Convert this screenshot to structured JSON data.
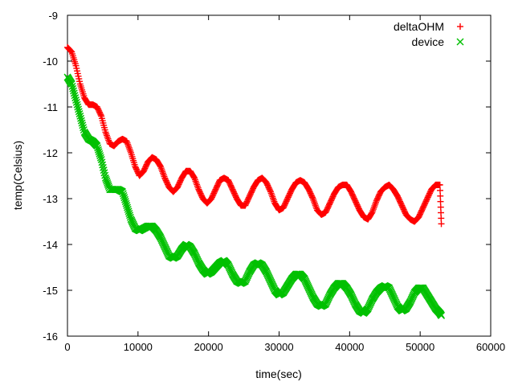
{
  "chart_data": {
    "type": "scatter",
    "title": "",
    "xlabel": "time(sec)",
    "ylabel": "temp(Celsius)",
    "xlim": [
      0,
      60000
    ],
    "ylim": [
      -16,
      -9
    ],
    "xticks": [
      0,
      10000,
      20000,
      30000,
      40000,
      50000,
      60000
    ],
    "yticks": [
      -16,
      -15,
      -14,
      -13,
      -12,
      -11,
      -10,
      -9
    ],
    "grid": false,
    "legend_position": "top-right",
    "series": [
      {
        "name": "deltaOHM",
        "marker": "plus",
        "color": "#ff0000",
        "points": [
          [
            0,
            -9.7
          ],
          [
            600,
            -9.8
          ],
          [
            1200,
            -10.1
          ],
          [
            1800,
            -10.5
          ],
          [
            2400,
            -10.8
          ],
          [
            3000,
            -10.95
          ],
          [
            3600,
            -10.95
          ],
          [
            4200,
            -11.0
          ],
          [
            4800,
            -11.2
          ],
          [
            5400,
            -11.55
          ],
          [
            6000,
            -11.8
          ],
          [
            6600,
            -11.85
          ],
          [
            7200,
            -11.75
          ],
          [
            7800,
            -11.7
          ],
          [
            8400,
            -11.75
          ],
          [
            9000,
            -12.0
          ],
          [
            9600,
            -12.3
          ],
          [
            10200,
            -12.5
          ],
          [
            10800,
            -12.4
          ],
          [
            11400,
            -12.2
          ],
          [
            12000,
            -12.1
          ],
          [
            12600,
            -12.15
          ],
          [
            13200,
            -12.3
          ],
          [
            13800,
            -12.55
          ],
          [
            14400,
            -12.75
          ],
          [
            15000,
            -12.85
          ],
          [
            15600,
            -12.75
          ],
          [
            16200,
            -12.55
          ],
          [
            16800,
            -12.4
          ],
          [
            17400,
            -12.4
          ],
          [
            18000,
            -12.55
          ],
          [
            18600,
            -12.8
          ],
          [
            19200,
            -13.0
          ],
          [
            19800,
            -13.1
          ],
          [
            20400,
            -13.0
          ],
          [
            21000,
            -12.8
          ],
          [
            21600,
            -12.6
          ],
          [
            22200,
            -12.55
          ],
          [
            22800,
            -12.6
          ],
          [
            23400,
            -12.8
          ],
          [
            24000,
            -13.0
          ],
          [
            24600,
            -13.15
          ],
          [
            25200,
            -13.15
          ],
          [
            25800,
            -12.95
          ],
          [
            26400,
            -12.75
          ],
          [
            27000,
            -12.6
          ],
          [
            27600,
            -12.55
          ],
          [
            28200,
            -12.65
          ],
          [
            28800,
            -12.85
          ],
          [
            29400,
            -13.1
          ],
          [
            30000,
            -13.25
          ],
          [
            30600,
            -13.2
          ],
          [
            31200,
            -13.0
          ],
          [
            31800,
            -12.8
          ],
          [
            32400,
            -12.65
          ],
          [
            33000,
            -12.6
          ],
          [
            33600,
            -12.65
          ],
          [
            34200,
            -12.8
          ],
          [
            34800,
            -13.0
          ],
          [
            35400,
            -13.25
          ],
          [
            36000,
            -13.35
          ],
          [
            36600,
            -13.3
          ],
          [
            37200,
            -13.1
          ],
          [
            37800,
            -12.9
          ],
          [
            38400,
            -12.75
          ],
          [
            39000,
            -12.7
          ],
          [
            39600,
            -12.7
          ],
          [
            40200,
            -12.85
          ],
          [
            40800,
            -13.05
          ],
          [
            41400,
            -13.25
          ],
          [
            42000,
            -13.4
          ],
          [
            42600,
            -13.45
          ],
          [
            43200,
            -13.3
          ],
          [
            43800,
            -13.05
          ],
          [
            44400,
            -12.85
          ],
          [
            45000,
            -12.75
          ],
          [
            45600,
            -12.7
          ],
          [
            46200,
            -12.8
          ],
          [
            46800,
            -12.95
          ],
          [
            47400,
            -13.15
          ],
          [
            48000,
            -13.35
          ],
          [
            48600,
            -13.45
          ],
          [
            49200,
            -13.5
          ],
          [
            49800,
            -13.4
          ],
          [
            50400,
            -13.2
          ],
          [
            51000,
            -13.0
          ],
          [
            51600,
            -12.8
          ],
          [
            52200,
            -12.7
          ],
          [
            52800,
            -12.7
          ],
          [
            53000,
            -13.55
          ]
        ]
      },
      {
        "name": "device",
        "marker": "cross",
        "color": "#00c000",
        "points": [
          [
            0,
            -10.35
          ],
          [
            600,
            -10.5
          ],
          [
            1200,
            -10.85
          ],
          [
            1800,
            -11.2
          ],
          [
            2400,
            -11.55
          ],
          [
            3000,
            -11.7
          ],
          [
            3600,
            -11.75
          ],
          [
            4200,
            -11.85
          ],
          [
            4800,
            -12.15
          ],
          [
            5400,
            -12.55
          ],
          [
            6000,
            -12.8
          ],
          [
            6600,
            -12.8
          ],
          [
            7200,
            -12.8
          ],
          [
            7800,
            -12.85
          ],
          [
            8400,
            -13.15
          ],
          [
            9000,
            -13.45
          ],
          [
            9600,
            -13.65
          ],
          [
            10200,
            -13.7
          ],
          [
            10800,
            -13.65
          ],
          [
            11400,
            -13.6
          ],
          [
            12000,
            -13.6
          ],
          [
            12600,
            -13.7
          ],
          [
            13200,
            -13.85
          ],
          [
            13800,
            -14.05
          ],
          [
            14400,
            -14.25
          ],
          [
            15000,
            -14.3
          ],
          [
            15600,
            -14.25
          ],
          [
            16200,
            -14.1
          ],
          [
            16800,
            -14.0
          ],
          [
            17400,
            -14.05
          ],
          [
            18000,
            -14.2
          ],
          [
            18600,
            -14.4
          ],
          [
            19200,
            -14.55
          ],
          [
            19800,
            -14.65
          ],
          [
            20400,
            -14.6
          ],
          [
            21000,
            -14.5
          ],
          [
            21600,
            -14.4
          ],
          [
            22200,
            -14.35
          ],
          [
            22800,
            -14.45
          ],
          [
            23400,
            -14.65
          ],
          [
            24000,
            -14.8
          ],
          [
            24600,
            -14.85
          ],
          [
            25200,
            -14.8
          ],
          [
            25800,
            -14.6
          ],
          [
            26400,
            -14.45
          ],
          [
            27000,
            -14.4
          ],
          [
            27600,
            -14.45
          ],
          [
            28200,
            -14.6
          ],
          [
            28800,
            -14.8
          ],
          [
            29400,
            -15.0
          ],
          [
            30000,
            -15.1
          ],
          [
            30600,
            -15.05
          ],
          [
            31200,
            -14.9
          ],
          [
            31800,
            -14.75
          ],
          [
            32400,
            -14.65
          ],
          [
            33000,
            -14.65
          ],
          [
            33600,
            -14.75
          ],
          [
            34200,
            -14.95
          ],
          [
            34800,
            -15.15
          ],
          [
            35400,
            -15.3
          ],
          [
            36000,
            -15.35
          ],
          [
            36600,
            -15.3
          ],
          [
            37200,
            -15.1
          ],
          [
            37800,
            -14.95
          ],
          [
            38400,
            -14.85
          ],
          [
            39000,
            -14.85
          ],
          [
            39600,
            -14.95
          ],
          [
            40200,
            -15.1
          ],
          [
            40800,
            -15.3
          ],
          [
            41400,
            -15.45
          ],
          [
            42000,
            -15.5
          ],
          [
            42600,
            -15.4
          ],
          [
            43200,
            -15.2
          ],
          [
            43800,
            -15.05
          ],
          [
            44400,
            -14.95
          ],
          [
            45000,
            -14.9
          ],
          [
            45600,
            -14.95
          ],
          [
            46200,
            -15.15
          ],
          [
            46800,
            -15.35
          ],
          [
            47400,
            -15.45
          ],
          [
            48000,
            -15.4
          ],
          [
            48600,
            -15.25
          ],
          [
            49200,
            -15.05
          ],
          [
            49800,
            -14.95
          ],
          [
            50400,
            -14.95
          ],
          [
            51000,
            -15.1
          ],
          [
            51600,
            -15.25
          ],
          [
            52200,
            -15.4
          ],
          [
            52800,
            -15.5
          ],
          [
            53000,
            -15.55
          ]
        ]
      }
    ]
  }
}
